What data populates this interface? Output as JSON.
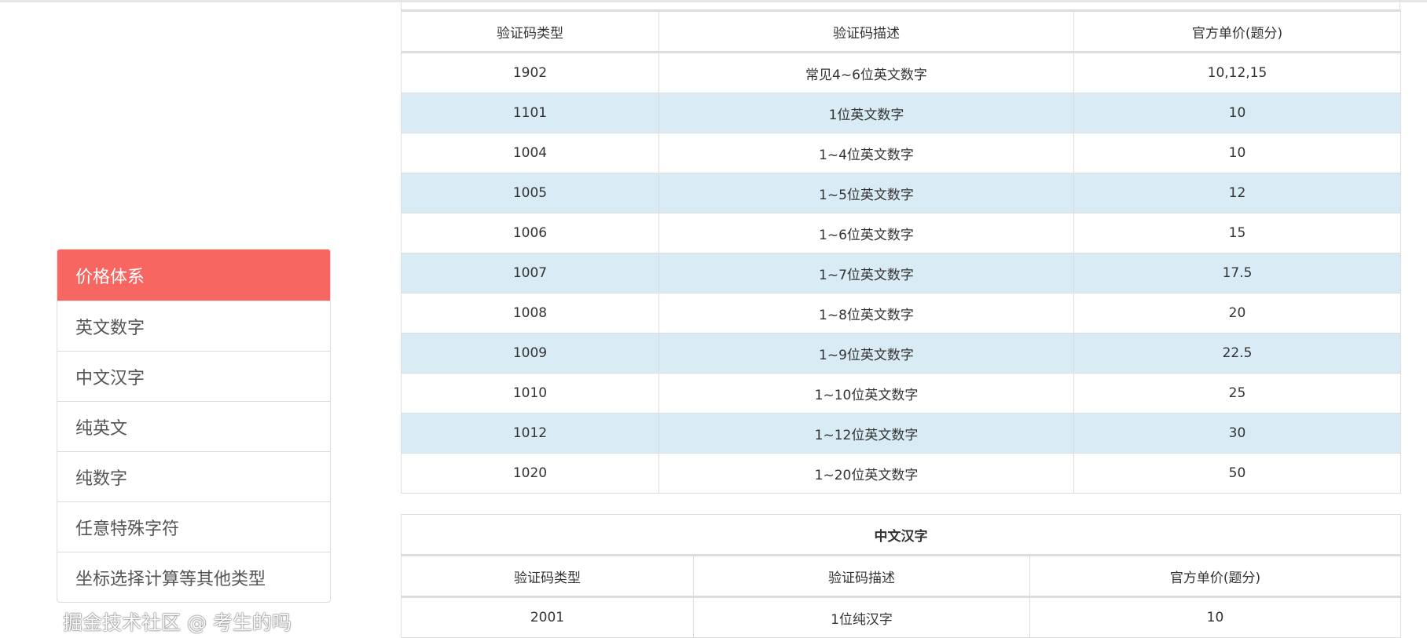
{
  "sidebar": {
    "items": [
      {
        "label": "价格体系",
        "active": true
      },
      {
        "label": "英文数字"
      },
      {
        "label": "中文汉字"
      },
      {
        "label": "纯英文"
      },
      {
        "label": "纯数字"
      },
      {
        "label": "任意特殊字符"
      },
      {
        "label": "坐标选择计算等其他类型"
      }
    ],
    "active_color": "#f76661"
  },
  "table1": {
    "headers": [
      "验证码类型",
      "验证码描述",
      "官方单价(题分)"
    ],
    "rows": [
      [
        "1902",
        "常见4~6位英文数字",
        "10,12,15"
      ],
      [
        "1101",
        "1位英文数字",
        "10"
      ],
      [
        "1004",
        "1~4位英文数字",
        "10"
      ],
      [
        "1005",
        "1~5位英文数字",
        "12"
      ],
      [
        "1006",
        "1~6位英文数字",
        "15"
      ],
      [
        "1007",
        "1~7位英文数字",
        "17.5"
      ],
      [
        "1008",
        "1~8位英文数字",
        "20"
      ],
      [
        "1009",
        "1~9位英文数字",
        "22.5"
      ],
      [
        "1010",
        "1~10位英文数字",
        "25"
      ],
      [
        "1012",
        "1~12位英文数字",
        "30"
      ],
      [
        "1020",
        "1~20位英文数字",
        "50"
      ]
    ]
  },
  "table2": {
    "title": "中文汉字",
    "headers": [
      "验证码类型",
      "验证码描述",
      "官方单价(题分)"
    ],
    "rows": [
      [
        "2001",
        "1位纯汉字",
        "10"
      ]
    ]
  },
  "watermark": "掘金技术社区 @ 考生的吗"
}
